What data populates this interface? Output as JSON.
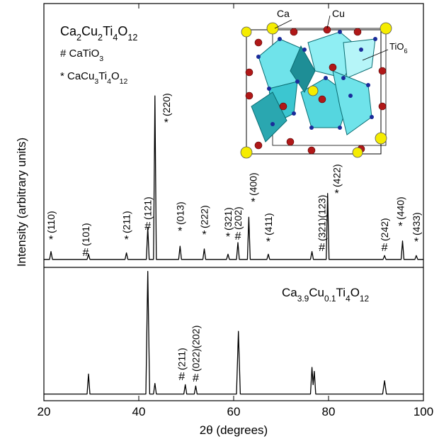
{
  "chart_data": {
    "type": "line",
    "x_label": "2θ (degrees)",
    "y_label": "Intensity (arbitrary units)",
    "xlim": [
      20,
      100
    ],
    "xticks": [
      20,
      40,
      60,
      80,
      100
    ],
    "color": "#000000",
    "panels": [
      {
        "ylim": [
          0,
          100
        ],
        "series": [
          {
            "name": "Ca2Cu2Ti4O12",
            "x": [
              20,
              21.2,
              21.5,
              21.8,
              29.1,
              29.4,
              29.7,
              37.1,
              37.4,
              37.7,
              41.6,
              41.9,
              42.2,
              43.1,
              43.4,
              43.7,
              48.4,
              48.7,
              49.0,
              53.5,
              53.8,
              54.1,
              58.5,
              58.8,
              59.1,
              60.6,
              60.9,
              61.2,
              62.9,
              63.2,
              63.5,
              67.0,
              67.3,
              67.6,
              76.2,
              76.5,
              76.8,
              79.5,
              79.8,
              80.1,
              91.5,
              91.8,
              92.1,
              95.3,
              95.6,
              95.9,
              98.2,
              98.5,
              98.8,
              100
            ],
            "values": [
              3,
              3,
              6,
              3,
              3,
              5,
              3,
              3,
              5.5,
              3,
              3,
              15,
              3,
              3,
              65,
              3,
              3,
              8,
              3,
              3,
              7,
              3,
              3,
              5,
              3,
              3,
              9.4,
              3,
              3,
              19,
              3,
              3,
              5,
              3,
              3,
              6,
              3,
              3,
              28,
              3,
              3,
              4.5,
              3,
              3,
              10,
              3,
              3,
              4.5,
              3,
              3
            ]
          }
        ],
        "phase_key": [
          "# CaTiO3",
          "* CaCu3Ti4O12"
        ],
        "annotations": [
          {
            "marker": "*",
            "label": "(110)",
            "x": 21.5
          },
          {
            "marker": "#",
            "label": "(101)",
            "x": 29.4
          },
          {
            "marker": "*",
            "label": "(211)",
            "x": 37.4
          },
          {
            "marker": "#",
            "label": "(121)",
            "x": 41.9
          },
          {
            "marker": "*",
            "label": "(220)",
            "x": 43.4
          },
          {
            "marker": "*",
            "label": "(013)",
            "x": 48.7
          },
          {
            "marker": "*",
            "label": "(222)",
            "x": 53.8
          },
          {
            "marker": "*",
            "label": "(321)",
            "x": 58.8
          },
          {
            "marker": "#",
            "label": "(202)",
            "x": 60.9
          },
          {
            "marker": "*",
            "label": "(400)",
            "x": 63.2
          },
          {
            "marker": "*",
            "label": "(411)",
            "x": 67.3
          },
          {
            "marker": "#",
            "label": "(321)(123)",
            "x": 76.5
          },
          {
            "marker": "*",
            "label": "(422)",
            "x": 79.8
          },
          {
            "marker": "#",
            "label": "(242)",
            "x": 91.8
          },
          {
            "marker": "*",
            "label": "(440)",
            "x": 95.6
          },
          {
            "marker": "*",
            "label": "(433)",
            "x": 98.5
          }
        ]
      },
      {
        "ylim": [
          0,
          100
        ],
        "series": [
          {
            "name": "Ca3.9Cu0.1Ti4O12",
            "x": [
              20,
              29.1,
              29.4,
              29.7,
              41.5,
              41.9,
              42.3,
              43.1,
              43.4,
              43.7,
              49.5,
              49.8,
              50.1,
              51.7,
              52.0,
              52.3,
              60.6,
              61.0,
              61.4,
              76.2,
              76.5,
              76.75,
              77.0,
              77.3,
              91.4,
              91.8,
              92.2,
              100
            ],
            "values": [
              5,
              5,
              20,
              5,
              5,
              97,
              5,
              5,
              13,
              5,
              5,
              12,
              5,
              5,
              11,
              5,
              5,
              52,
              5,
              5,
              25,
              12,
              22,
              5,
              5,
              15,
              5,
              5
            ]
          }
        ],
        "annotations": [
          {
            "marker": "#",
            "label": "(211)",
            "x": 49.8
          },
          {
            "marker": "#",
            "label": "(022)(202)",
            "x": 52.0
          }
        ]
      }
    ],
    "inset": {
      "labels": [
        "Ca",
        "Cu",
        "TiO6"
      ]
    }
  }
}
